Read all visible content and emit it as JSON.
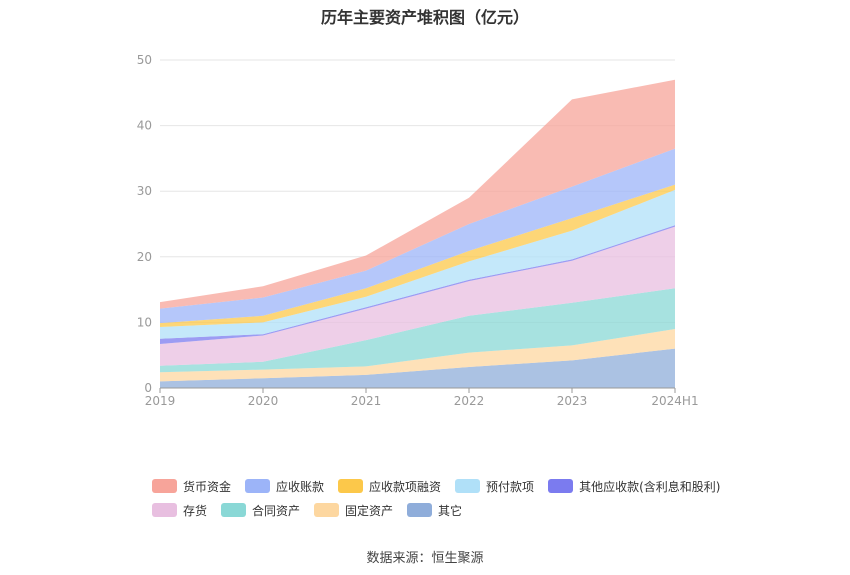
{
  "source_text": "数据来源：恒生聚源",
  "chart_data": {
    "type": "area",
    "stacked": true,
    "title": "历年主要资产堆积图（亿元）",
    "categories": [
      "2019",
      "2020",
      "2021",
      "2022",
      "2023",
      "2024H1"
    ],
    "ylim": [
      0,
      50
    ],
    "yticks": [
      0,
      10,
      20,
      30,
      40,
      50
    ],
    "grid": true,
    "legend_position": "bottom",
    "series": [
      {
        "name": "其它",
        "color": "#8fadda",
        "values": [
          1.0,
          1.5,
          2.0,
          3.2,
          4.2,
          6.0
        ]
      },
      {
        "name": "固定资产",
        "color": "#fdd7a0",
        "values": [
          1.4,
          1.3,
          1.3,
          2.2,
          2.3,
          3.0
        ]
      },
      {
        "name": "合同资产",
        "color": "#8ad8d6",
        "values": [
          1.0,
          1.2,
          4.0,
          5.6,
          6.5,
          6.2
        ]
      },
      {
        "name": "存货",
        "color": "#e8bfe0",
        "values": [
          3.3,
          4.0,
          4.8,
          5.3,
          6.4,
          9.4
        ]
      },
      {
        "name": "其他应收款(含利息和股利)",
        "color": "#7b7bef",
        "values": [
          0.8,
          0.2,
          0.2,
          0.2,
          0.2,
          0.2
        ]
      },
      {
        "name": "预付款项",
        "color": "#b0e0f8",
        "values": [
          1.8,
          1.8,
          1.6,
          2.8,
          4.4,
          5.4
        ]
      },
      {
        "name": "应收款项融资",
        "color": "#fcc84a",
        "values": [
          0.6,
          1.0,
          1.3,
          1.6,
          1.9,
          0.8
        ]
      },
      {
        "name": "应收账款",
        "color": "#9cb4f8",
        "values": [
          2.2,
          2.8,
          2.7,
          4.1,
          4.8,
          5.5
        ]
      },
      {
        "name": "货币资金",
        "color": "#f7a49a",
        "values": [
          1.0,
          1.7,
          2.3,
          4.0,
          13.3,
          10.5
        ]
      }
    ]
  },
  "legend_rows": [
    [
      "货币资金",
      "应收账款",
      "应收款项融资",
      "预付款项",
      "其他应收款(含利息和股利)"
    ],
    [
      "存货",
      "合同资产",
      "固定资产",
      "其它"
    ]
  ]
}
